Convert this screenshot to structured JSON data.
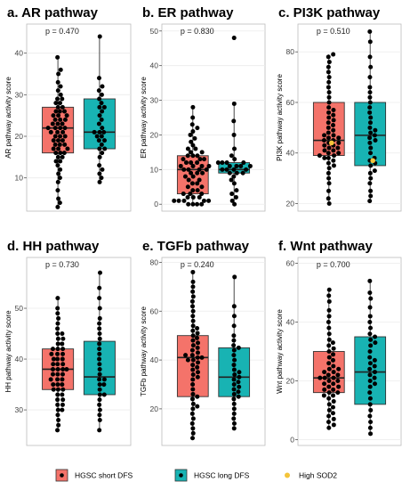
{
  "legend": [
    {
      "label": "HGSC short DFS",
      "color": "#f4736a",
      "shape": "box"
    },
    {
      "label": "HGSC long DFS",
      "color": "#18b3b3",
      "shape": "box"
    },
    {
      "label": "High SOD2",
      "color": "#f4c43a",
      "shape": "dot"
    }
  ],
  "chart_data": [
    {
      "type": "boxplot",
      "panel": "a.",
      "title": "AR pathway",
      "pvalue": "p = 0.470",
      "ylabel": "AR pathway activity score",
      "ylim": [
        2,
        47
      ],
      "yticks": [
        10,
        20,
        30,
        40
      ],
      "groups": [
        {
          "name": "HGSC short DFS",
          "min": 3,
          "q1": 16,
          "median": 22,
          "q3": 27,
          "max": 39,
          "points": [
            3,
            4,
            5,
            7,
            9,
            10,
            11,
            12,
            13,
            14,
            14,
            15,
            15,
            16,
            16,
            16,
            17,
            17,
            17,
            18,
            18,
            18,
            19,
            19,
            19,
            20,
            20,
            20,
            21,
            21,
            21,
            22,
            22,
            22,
            22,
            23,
            23,
            23,
            24,
            24,
            24,
            25,
            25,
            25,
            26,
            26,
            26,
            27,
            27,
            28,
            28,
            29,
            29,
            30,
            31,
            32,
            33,
            35,
            36,
            39
          ]
        },
        {
          "name": "HGSC long DFS",
          "min": 9,
          "q1": 17,
          "median": 21,
          "q3": 29,
          "max": 44,
          "points": [
            9,
            10,
            11,
            12,
            13,
            15,
            16,
            17,
            17,
            18,
            19,
            19,
            20,
            20,
            21,
            21,
            21,
            22,
            23,
            24,
            25,
            26,
            27,
            27,
            28,
            29,
            30,
            31,
            32,
            34,
            44
          ]
        }
      ]
    },
    {
      "type": "boxplot",
      "panel": "b.",
      "title": "ER pathway",
      "pvalue": "p = 0.830",
      "ylabel": "ER pathway activity score",
      "ylim": [
        -2,
        52
      ],
      "yticks": [
        0,
        10,
        20,
        30,
        40,
        50
      ],
      "groups": [
        {
          "name": "HGSC short DFS",
          "min": 0,
          "q1": 3,
          "median": 10,
          "q3": 14,
          "max": 28,
          "points": [
            0,
            0,
            0,
            0,
            1,
            1,
            1,
            1,
            1,
            2,
            2,
            2,
            3,
            3,
            3,
            4,
            4,
            5,
            5,
            6,
            6,
            7,
            7,
            8,
            8,
            9,
            9,
            9,
            10,
            10,
            10,
            10,
            11,
            11,
            11,
            11,
            12,
            12,
            12,
            13,
            13,
            13,
            14,
            14,
            14,
            15,
            15,
            16,
            16,
            17,
            18,
            19,
            20,
            21,
            22,
            23,
            25,
            28
          ]
        },
        {
          "name": "HGSC long DFS",
          "min": 0,
          "q1": 9,
          "median": 10,
          "q3": 12,
          "max": 29,
          "points": [
            0,
            1,
            2,
            3,
            4,
            6,
            7,
            8,
            9,
            9,
            9,
            10,
            10,
            10,
            10,
            11,
            11,
            11,
            11,
            12,
            12,
            12,
            12,
            13,
            14,
            16,
            20,
            24,
            29,
            48
          ]
        }
      ]
    },
    {
      "type": "boxplot",
      "panel": "c.",
      "title": "PI3K pathway",
      "pvalue": "p = 0.510",
      "ylabel": "PI3K pathway activity score",
      "ylim": [
        17,
        91
      ],
      "yticks": [
        20,
        40,
        60,
        80
      ],
      "groups": [
        {
          "name": "HGSC short DFS",
          "min": 20,
          "q1": 39,
          "median": 45,
          "q3": 60,
          "max": 79,
          "points": [
            20,
            22,
            25,
            28,
            30,
            32,
            34,
            35,
            36,
            37,
            38,
            38,
            39,
            39,
            40,
            40,
            41,
            41,
            42,
            42,
            43,
            43,
            44,
            44,
            45,
            45,
            46,
            46,
            47,
            47,
            48,
            49,
            50,
            51,
            52,
            53,
            54,
            55,
            56,
            57,
            58,
            60,
            62,
            64,
            66,
            68,
            70,
            72,
            74,
            76,
            78,
            79
          ],
          "highlight": [
            44
          ]
        },
        {
          "name": "HGSC long DFS",
          "min": 21,
          "q1": 35,
          "median": 47,
          "q3": 60,
          "max": 88,
          "points": [
            21,
            23,
            25,
            28,
            30,
            32,
            33,
            35,
            36,
            37,
            38,
            40,
            42,
            44,
            45,
            46,
            47,
            48,
            49,
            50,
            52,
            54,
            56,
            58,
            60,
            62,
            64,
            66,
            70,
            74,
            78,
            84,
            88
          ],
          "highlight": [
            37
          ]
        }
      ]
    },
    {
      "type": "boxplot",
      "panel": "d.",
      "title": "HH pathway",
      "pvalue": "p = 0.730",
      "ylabel": "HH pathway activity score",
      "ylim": [
        23,
        60
      ],
      "yticks": [
        30,
        40,
        50
      ],
      "groups": [
        {
          "name": "HGSC short DFS",
          "min": 26,
          "q1": 34,
          "median": 38,
          "q3": 42,
          "max": 52,
          "points": [
            26,
            27,
            28,
            29,
            30,
            30,
            31,
            31,
            32,
            32,
            33,
            33,
            34,
            34,
            34,
            35,
            35,
            35,
            36,
            36,
            36,
            37,
            37,
            37,
            38,
            38,
            38,
            38,
            39,
            39,
            39,
            40,
            40,
            40,
            41,
            41,
            41,
            42,
            42,
            42,
            43,
            43,
            44,
            44,
            45,
            45,
            46,
            47,
            48,
            49,
            50,
            52
          ]
        },
        {
          "name": "HGSC long DFS",
          "min": 26,
          "q1": 33,
          "median": 36.5,
          "q3": 43.5,
          "max": 57,
          "points": [
            26,
            28,
            29,
            30,
            31,
            32,
            33,
            33,
            34,
            35,
            35,
            36,
            36,
            37,
            38,
            39,
            40,
            41,
            42,
            43,
            44,
            45,
            46,
            47,
            48,
            50,
            52,
            54,
            57
          ]
        }
      ]
    },
    {
      "type": "boxplot",
      "panel": "e.",
      "title": "TGFb pathway",
      "pvalue": "p = 0.240",
      "ylabel": "TGFb pathway activity score",
      "ylim": [
        5,
        82
      ],
      "yticks": [
        20,
        40,
        60,
        80
      ],
      "groups": [
        {
          "name": "HGSC short DFS",
          "min": 8,
          "q1": 25,
          "median": 41,
          "q3": 50,
          "max": 76,
          "points": [
            8,
            10,
            12,
            14,
            16,
            18,
            20,
            21,
            22,
            24,
            25,
            26,
            28,
            30,
            32,
            33,
            34,
            35,
            36,
            37,
            38,
            39,
            40,
            40,
            41,
            41,
            42,
            42,
            43,
            44,
            45,
            46,
            47,
            48,
            49,
            50,
            51,
            52,
            53,
            54,
            56,
            58,
            60,
            62,
            64,
            66,
            68,
            70,
            72,
            76
          ]
        },
        {
          "name": "HGSC long DFS",
          "min": 12,
          "q1": 25,
          "median": 33,
          "q3": 45,
          "max": 74,
          "points": [
            12,
            14,
            16,
            18,
            20,
            22,
            24,
            25,
            26,
            27,
            28,
            29,
            30,
            31,
            32,
            33,
            34,
            35,
            36,
            38,
            40,
            42,
            44,
            45,
            46,
            48,
            50,
            54,
            58,
            62,
            74
          ]
        }
      ]
    },
    {
      "type": "boxplot",
      "panel": "f.",
      "title": "Wnt pathway",
      "pvalue": "p = 0.700",
      "ylabel": "Wnt pathway activity score",
      "ylim": [
        -2,
        62
      ],
      "yticks": [
        0,
        20,
        40,
        60
      ],
      "groups": [
        {
          "name": "HGSC short DFS",
          "min": 4,
          "q1": 16,
          "median": 21,
          "q3": 30,
          "max": 51,
          "points": [
            4,
            5,
            6,
            7,
            8,
            9,
            10,
            11,
            12,
            13,
            14,
            15,
            15,
            16,
            16,
            17,
            17,
            18,
            18,
            19,
            19,
            20,
            20,
            21,
            21,
            21,
            22,
            22,
            23,
            23,
            24,
            24,
            25,
            26,
            27,
            28,
            29,
            30,
            31,
            32,
            33,
            34,
            36,
            38,
            40,
            42,
            44,
            47,
            49,
            51
          ]
        },
        {
          "name": "HGSC long DFS",
          "min": 2,
          "q1": 12,
          "median": 23,
          "q3": 35,
          "max": 54,
          "points": [
            2,
            4,
            6,
            8,
            10,
            12,
            14,
            16,
            18,
            19,
            20,
            21,
            22,
            23,
            24,
            25,
            26,
            27,
            28,
            30,
            32,
            33,
            34,
            35,
            36,
            38,
            40,
            42,
            45,
            48,
            50,
            54
          ]
        }
      ]
    }
  ]
}
